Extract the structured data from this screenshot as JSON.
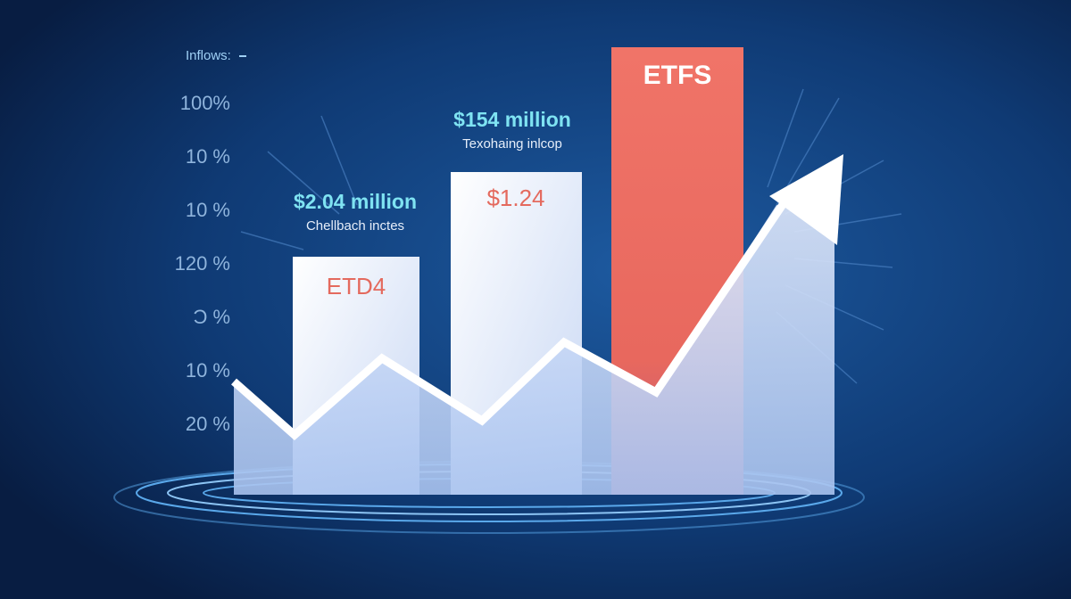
{
  "header": {
    "label": "Inflows:"
  },
  "axis_labels": [
    "100%",
    "10 %",
    "10 %",
    "120 %",
    "Ɔ %",
    "10 %",
    "20 %"
  ],
  "annotations": [
    {
      "value": "$2.04 million",
      "caption": "Chellbach inctes"
    },
    {
      "value": "$154 million",
      "caption": "Texohaing inlcop"
    }
  ],
  "bars": [
    {
      "label": "ETD4"
    },
    {
      "label": "$1.24"
    },
    {
      "label": "ETFS"
    }
  ]
}
